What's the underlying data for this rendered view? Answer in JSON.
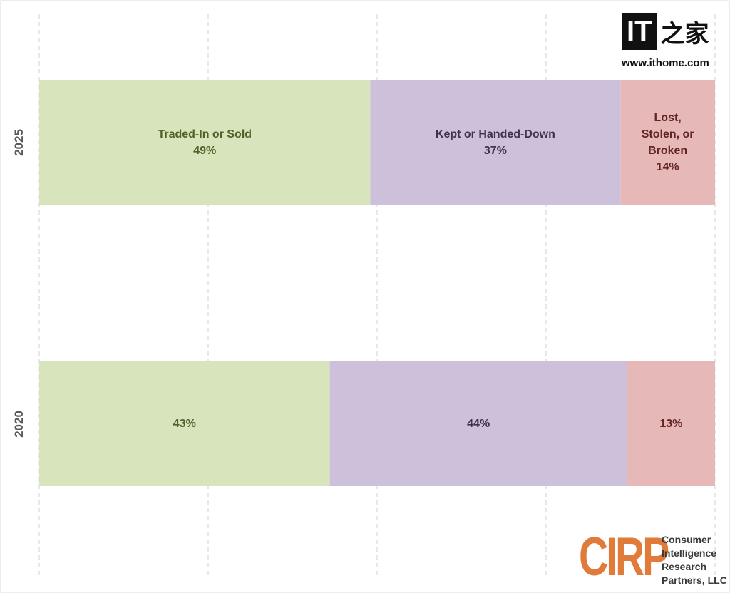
{
  "chart_data": {
    "type": "stacked-bar-horizontal",
    "categories": [
      "2025",
      "2020"
    ],
    "series": [
      {
        "name": "Traded-In or Sold",
        "color": "#d8e4bc",
        "text_color": "#4f6228",
        "values": [
          49,
          43
        ],
        "value_labels": [
          "49%",
          "43%"
        ]
      },
      {
        "name": "Kept or Handed-Down",
        "color": "#ccc0da",
        "text_color": "#403151",
        "values": [
          37,
          44
        ],
        "value_labels": [
          "37%",
          "44%"
        ]
      },
      {
        "name": "Lost, Stolen, or Broken",
        "color": "#e6b9b8",
        "text_color": "#632523",
        "values": [
          14,
          13
        ],
        "value_labels": [
          "14%",
          "13%"
        ]
      }
    ],
    "xlim": [
      0,
      100
    ],
    "xticks": [
      0,
      25,
      50,
      75,
      100
    ],
    "grid": true
  },
  "watermark": {
    "logo": "IT之家",
    "url": "www.ithome.com"
  },
  "source": {
    "mark": "CIRP",
    "name": "Consumer Intelligence Research Partners, LLC"
  }
}
